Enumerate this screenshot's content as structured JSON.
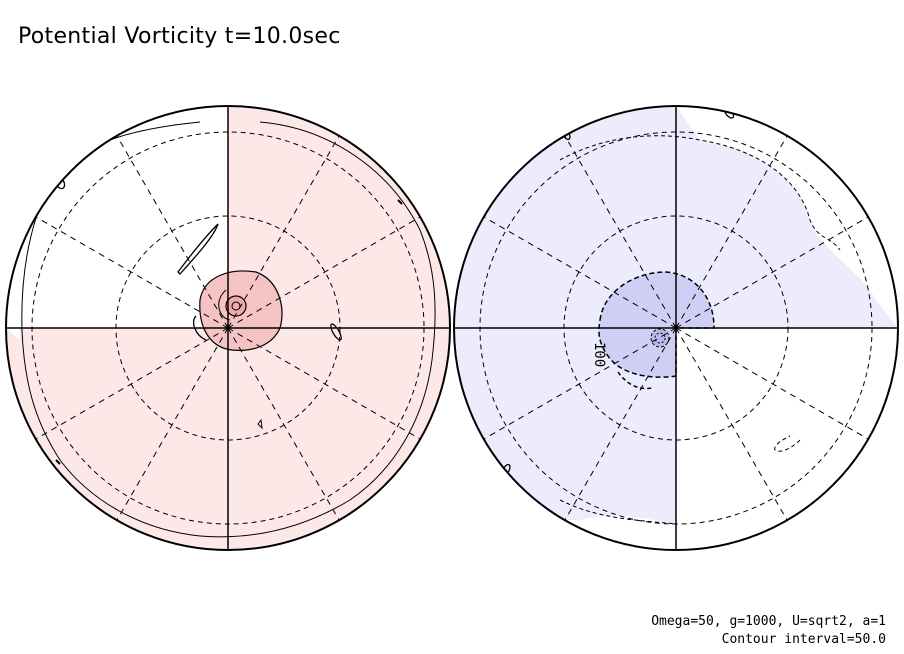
{
  "title": "Potential Vorticity t=10.0sec",
  "notes": {
    "params": "Omega=50, g=1000, U=sqrt2, a=1",
    "interval": "Contour interval=50.0"
  },
  "chart_data": [
    {
      "type": "contour",
      "hemisphere": "left",
      "projection": "polar stereographic",
      "shading": {
        "positive_color": "#fde8e8",
        "positive_strong_color": "#f5c3c3",
        "shaded_quadrants": [
          "upper-right",
          "lower-left",
          "lower-right"
        ]
      },
      "contour_levels": [
        50,
        100
      ],
      "contour_style": "solid",
      "contour_labels": []
    },
    {
      "type": "contour",
      "hemisphere": "right",
      "projection": "polar stereographic",
      "shading": {
        "negative_color": "#ececfc",
        "negative_strong_color": "#cfcff5",
        "shaded_quadrants": [
          "upper-left",
          "upper-right",
          "lower-left"
        ]
      },
      "contour_levels": [
        -50,
        -100
      ],
      "contour_style": "dashed",
      "contour_labels": [
        "100"
      ]
    }
  ],
  "contour_interval": 50.0,
  "colors": {
    "line": "#000000",
    "positive_fill": "#fde8e8",
    "negative_fill": "#ececfc"
  }
}
